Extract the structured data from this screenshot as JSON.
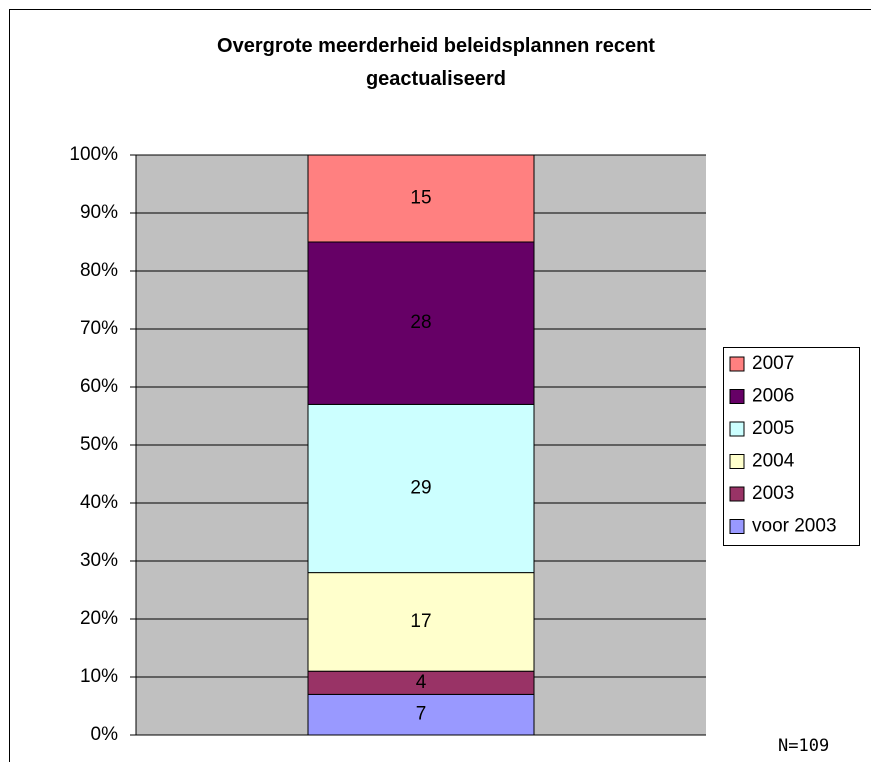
{
  "chart_data": {
    "type": "stacked_bar_percent",
    "title": "Overgrote meerderheid beleidsplannen recent geactualiseerd",
    "categories": [
      null
    ],
    "series": [
      {
        "name": "voor 2003",
        "color": "#9999ff",
        "values": [
          7
        ]
      },
      {
        "name": "2003",
        "color": "#993366",
        "values": [
          4
        ]
      },
      {
        "name": "2004",
        "color": "#ffffcc",
        "values": [
          17
        ]
      },
      {
        "name": "2005",
        "color": "#ccffff",
        "values": [
          29
        ]
      },
      {
        "name": "2006",
        "color": "#660066",
        "values": [
          28
        ]
      },
      {
        "name": "2007",
        "color": "#ff8080",
        "values": [
          15
        ]
      }
    ],
    "ylim": [
      0,
      100
    ],
    "yticks": [
      {
        "value": 0,
        "label": "0%"
      },
      {
        "value": 10,
        "label": "10%"
      },
      {
        "value": 20,
        "label": "20%"
      },
      {
        "value": 30,
        "label": "30%"
      },
      {
        "value": 40,
        "label": "40%"
      },
      {
        "value": 50,
        "label": "50%"
      },
      {
        "value": 60,
        "label": "60%"
      },
      {
        "value": 70,
        "label": "70%"
      },
      {
        "value": 80,
        "label": "80%"
      },
      {
        "value": 90,
        "label": "90%"
      },
      {
        "value": 100,
        "label": "100%"
      }
    ],
    "grid": true,
    "legend": "right",
    "annotation": "N=109"
  }
}
